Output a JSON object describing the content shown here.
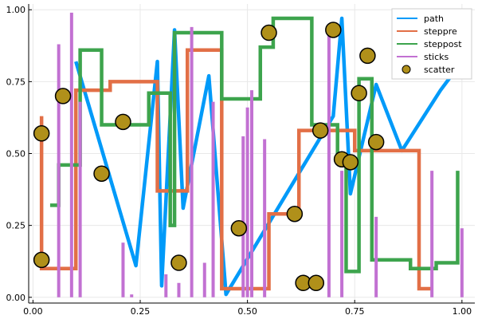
{
  "chart_data": {
    "type": "line",
    "title": "",
    "xlabel": "",
    "ylabel": "",
    "xlim": [
      -0.01,
      1.03
    ],
    "ylim": [
      -0.02,
      1.02
    ],
    "grid": true,
    "legend_position": "top-right",
    "x_ticks": [
      {
        "value": 0.0,
        "label": "0.00"
      },
      {
        "value": 0.25,
        "label": "0.25"
      },
      {
        "value": 0.5,
        "label": "0.50"
      },
      {
        "value": 0.75,
        "label": "0.75"
      },
      {
        "value": 1.0,
        "label": "1.00"
      }
    ],
    "y_ticks": [
      {
        "value": 0.0,
        "label": "0.00"
      },
      {
        "value": 0.25,
        "label": "0.25"
      },
      {
        "value": 0.5,
        "label": "0.50"
      },
      {
        "value": 0.75,
        "label": "0.75"
      },
      {
        "value": 1.0,
        "label": "1.00"
      }
    ],
    "series": [
      {
        "name": "path",
        "kind": "line",
        "color": "#009af9",
        "x": [
          0.1,
          0.24,
          0.29,
          0.3,
          0.33,
          0.35,
          0.41,
          0.45,
          0.7,
          0.72,
          0.74,
          0.8,
          0.86,
          0.95,
          1.0
        ],
        "y": [
          0.82,
          0.11,
          0.82,
          0.04,
          0.93,
          0.31,
          0.77,
          0.01,
          0.63,
          0.97,
          0.36,
          0.74,
          0.51,
          0.72,
          0.82
        ]
      },
      {
        "name": "steppre",
        "kind": "steppre",
        "color": "#e26f46",
        "x": [
          0.02,
          0.1,
          0.18,
          0.29,
          0.36,
          0.44,
          0.55,
          0.62,
          0.75,
          0.9,
          0.93
        ],
        "y": [
          0.63,
          0.1,
          0.72,
          0.75,
          0.37,
          0.86,
          0.03,
          0.29,
          0.58,
          0.51,
          0.03
        ]
      },
      {
        "name": "steppost",
        "kind": "steppost",
        "color": "#3da44d",
        "x": [
          0.04,
          0.05,
          0.06,
          0.11,
          0.16,
          0.19,
          0.27,
          0.32,
          0.33,
          0.44,
          0.53,
          0.56,
          0.65,
          0.71,
          0.73,
          0.76,
          0.79,
          0.88,
          0.94,
          0.99
        ],
        "y": [
          0.32,
          0.32,
          0.46,
          0.86,
          0.6,
          0.6,
          0.71,
          0.25,
          0.92,
          0.69,
          0.87,
          0.97,
          0.6,
          0.47,
          0.09,
          0.76,
          0.13,
          0.1,
          0.12,
          0.44
        ]
      },
      {
        "name": "sticks",
        "kind": "sticks",
        "color": "#c271d2",
        "x": [
          0.06,
          0.09,
          0.11,
          0.21,
          0.23,
          0.31,
          0.34,
          0.37,
          0.4,
          0.42,
          0.49,
          0.5,
          0.51,
          0.54,
          0.69,
          0.72,
          0.8,
          0.93,
          1.0
        ],
        "y": [
          0.88,
          0.99,
          0.68,
          0.19,
          0.01,
          0.08,
          0.05,
          0.94,
          0.12,
          0.68,
          0.56,
          0.66,
          0.72,
          0.55,
          0.92,
          0.44,
          0.28,
          0.44,
          0.24
        ]
      },
      {
        "name": "scatter",
        "kind": "scatter",
        "color": "#b0901a",
        "x": [
          0.02,
          0.02,
          0.07,
          0.16,
          0.21,
          0.34,
          0.48,
          0.55,
          0.61,
          0.63,
          0.66,
          0.67,
          0.7,
          0.72,
          0.74,
          0.76,
          0.78,
          0.8
        ],
        "y": [
          0.57,
          0.13,
          0.7,
          0.43,
          0.61,
          0.12,
          0.24,
          0.92,
          0.29,
          0.05,
          0.05,
          0.58,
          0.93,
          0.48,
          0.47,
          0.71,
          0.84,
          0.54
        ]
      }
    ]
  }
}
